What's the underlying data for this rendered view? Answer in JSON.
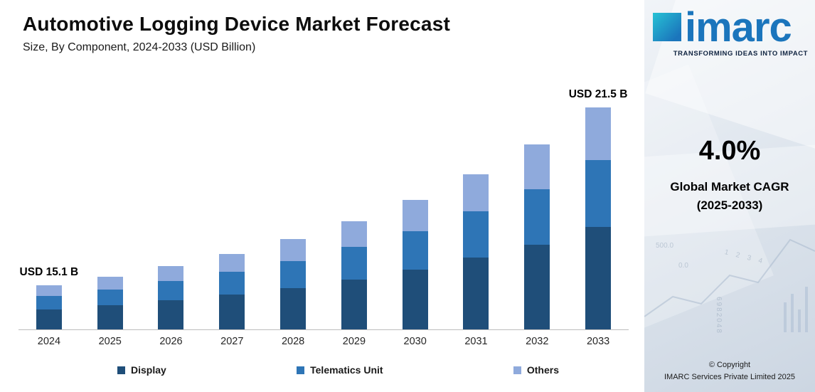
{
  "chart_data": {
    "type": "bar",
    "stacked": true,
    "title": "Automotive Logging Device Market Forecast",
    "subtitle": "Size, By Component, 2024-2033 (USD Billion)",
    "categories": [
      "2024",
      "2025",
      "2026",
      "2027",
      "2028",
      "2029",
      "2030",
      "2031",
      "2032",
      "2033"
    ],
    "series": [
      {
        "name": "Display",
        "color": "#1F4E79",
        "values": [
          6.9,
          7.2,
          7.5,
          7.8,
          8.1,
          8.5,
          8.8,
          9.2,
          9.5,
          9.9
        ]
      },
      {
        "name": "Telematics Unit",
        "color": "#2E75B6",
        "values": [
          4.5,
          4.7,
          4.9,
          5.1,
          5.3,
          5.5,
          5.7,
          6.0,
          6.2,
          6.5
        ]
      },
      {
        "name": "Others",
        "color": "#8FAADC",
        "values": [
          3.7,
          3.8,
          3.9,
          4.1,
          4.3,
          4.4,
          4.6,
          4.7,
          5.0,
          5.1
        ]
      }
    ],
    "totals": [
      15.1,
      15.7,
      16.3,
      17.0,
      17.7,
      18.4,
      19.1,
      19.9,
      20.7,
      21.5
    ],
    "annotations": [
      {
        "category": "2024",
        "label": "USD 15.1 B"
      },
      {
        "category": "2033",
        "label": "USD 21.5 B"
      }
    ],
    "legend_position": "bottom",
    "grid": false
  },
  "sidebar": {
    "logo": {
      "text": "imarc",
      "tagline": "TRANSFORMING IDEAS INTO IMPACT"
    },
    "cagr": {
      "value": "4.0%",
      "label": "Global Market CAGR",
      "period": "(2025-2033)"
    },
    "copyright": {
      "line1": "© Copyright",
      "line2": "IMARC Services Private Limited 2025"
    },
    "decor_labels": [
      "500.0",
      "0.0",
      "1 2 3 4",
      "6982048"
    ]
  },
  "colors": {
    "logo_blue": "#1b75bc",
    "logo_teal": "#27c2d5",
    "axis_line": "#bdbdbd"
  }
}
